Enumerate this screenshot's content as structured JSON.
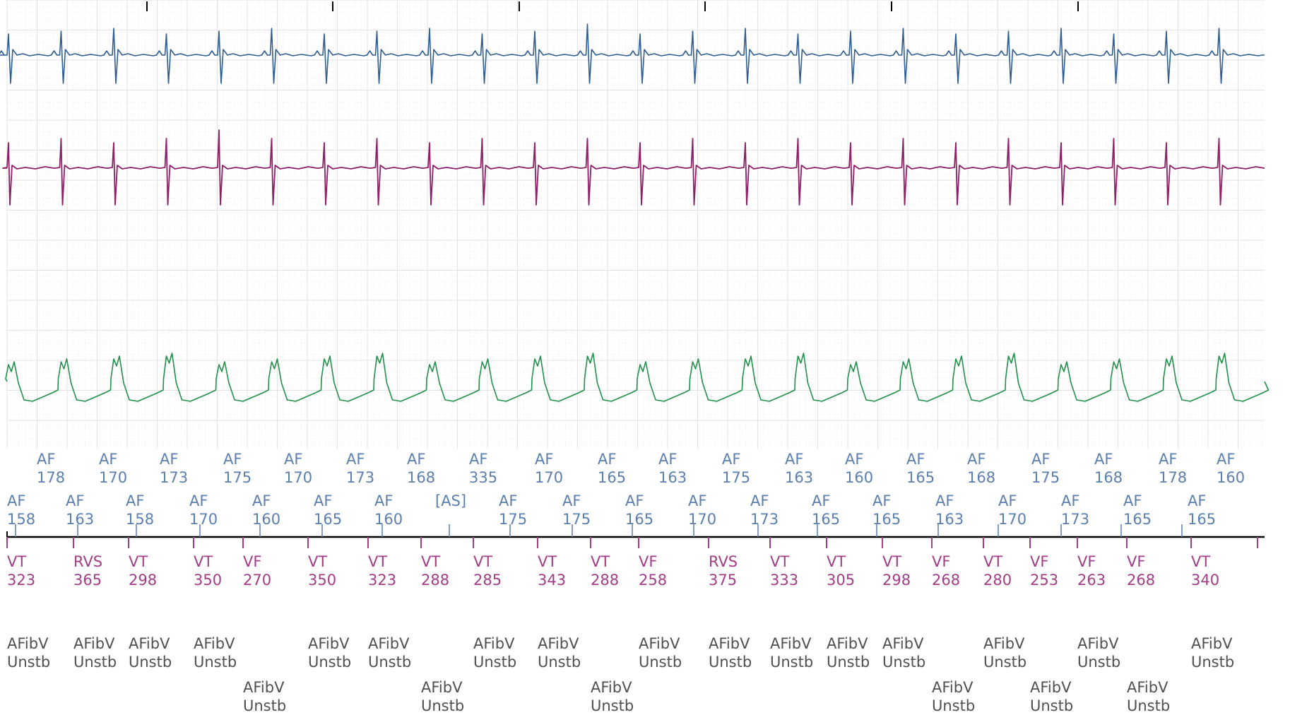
{
  "colors": {
    "grid_major": "#e3e3e3",
    "grid_minor": "#efefef",
    "ecg_blue": "#2f5e92",
    "ecg_purple": "#8e1f68",
    "ecg_green": "#20904a",
    "atrial_label": "#5b7fae",
    "ventricular_label": "#a23d86",
    "rhythm_label": "#505050",
    "baseline": "#000000"
  },
  "atrial_row1": [
    {
      "top": "AF",
      "bottom": "178"
    },
    {
      "top": "AF",
      "bottom": "170"
    },
    {
      "top": "AF",
      "bottom": "173"
    },
    {
      "top": "AF",
      "bottom": "175"
    },
    {
      "top": "AF",
      "bottom": "170"
    },
    {
      "top": "AF",
      "bottom": "173"
    },
    {
      "top": "AF",
      "bottom": "168"
    },
    {
      "top": "AF",
      "bottom": "335"
    },
    {
      "top": "AF",
      "bottom": "170"
    },
    {
      "top": "AF",
      "bottom": "165"
    },
    {
      "top": "AF",
      "bottom": "163"
    },
    {
      "top": "AF",
      "bottom": "175"
    },
    {
      "top": "AF",
      "bottom": "163"
    },
    {
      "top": "AF",
      "bottom": "160"
    },
    {
      "top": "AF",
      "bottom": "165"
    },
    {
      "top": "AF",
      "bottom": "168"
    },
    {
      "top": "AF",
      "bottom": "175"
    },
    {
      "top": "AF",
      "bottom": "168"
    },
    {
      "top": "AF",
      "bottom": "178"
    },
    {
      "top": "AF",
      "bottom": "160"
    }
  ],
  "atrial_row2": [
    {
      "top": "AF",
      "bottom": "158"
    },
    {
      "top": "AF",
      "bottom": "163"
    },
    {
      "top": "AF",
      "bottom": "158"
    },
    {
      "top": "AF",
      "bottom": "170"
    },
    {
      "top": "AF",
      "bottom": "160"
    },
    {
      "top": "AF",
      "bottom": "165"
    },
    {
      "top": "AF",
      "bottom": "160"
    },
    {
      "top": "[AS]",
      "bottom": ""
    },
    {
      "top": "AF",
      "bottom": "175"
    },
    {
      "top": "AF",
      "bottom": "175"
    },
    {
      "top": "AF",
      "bottom": "165"
    },
    {
      "top": "AF",
      "bottom": "170"
    },
    {
      "top": "AF",
      "bottom": "173"
    },
    {
      "top": "AF",
      "bottom": "165"
    },
    {
      "top": "AF",
      "bottom": "165"
    },
    {
      "top": "AF",
      "bottom": "163"
    },
    {
      "top": "AF",
      "bottom": "170"
    },
    {
      "top": "AF",
      "bottom": "173"
    },
    {
      "top": "AF",
      "bottom": "165"
    },
    {
      "top": "AF",
      "bottom": "165"
    }
  ],
  "ventricular": [
    {
      "top": "VT",
      "bottom": "323"
    },
    {
      "top": "RVS",
      "bottom": "365"
    },
    {
      "top": "VT",
      "bottom": "298"
    },
    {
      "top": "VT",
      "bottom": "350"
    },
    {
      "top": "VF",
      "bottom": "270"
    },
    {
      "top": "VT",
      "bottom": "350"
    },
    {
      "top": "VT",
      "bottom": "323"
    },
    {
      "top": "VT",
      "bottom": "288"
    },
    {
      "top": "VT",
      "bottom": "285"
    },
    {
      "top": "VT",
      "bottom": "343"
    },
    {
      "top": "VT",
      "bottom": "288"
    },
    {
      "top": "VF",
      "bottom": "258"
    },
    {
      "top": "RVS",
      "bottom": "375"
    },
    {
      "top": "VT",
      "bottom": "333"
    },
    {
      "top": "VT",
      "bottom": "305"
    },
    {
      "top": "VT",
      "bottom": "298"
    },
    {
      "top": "VF",
      "bottom": "268"
    },
    {
      "top": "VT",
      "bottom": "280"
    },
    {
      "top": "VF",
      "bottom": "253"
    },
    {
      "top": "VF",
      "bottom": "263"
    },
    {
      "top": "VF",
      "bottom": "268"
    },
    {
      "top": "VT",
      "bottom": "340"
    }
  ],
  "rhythm_row1": [
    {
      "top": "AFibV",
      "bottom": "Unstb"
    },
    {
      "top": "AFibV",
      "bottom": "Unstb"
    },
    {
      "top": "AFibV",
      "bottom": "Unstb"
    },
    {
      "top": "AFibV",
      "bottom": "Unstb"
    },
    {
      "top": "AFibV",
      "bottom": "Unstb"
    },
    {
      "top": "AFibV",
      "bottom": "Unstb"
    },
    {
      "top": "AFibV",
      "bottom": "Unstb"
    },
    {
      "top": "AFibV",
      "bottom": "Unstb"
    },
    {
      "top": "AFibV",
      "bottom": "Unstb"
    },
    {
      "top": "AFibV",
      "bottom": "Unstb"
    },
    {
      "top": "AFibV",
      "bottom": "Unstb"
    },
    {
      "top": "AFibV",
      "bottom": "Unstb"
    },
    {
      "top": "AFibV",
      "bottom": "Unstb"
    },
    {
      "top": "AFibV",
      "bottom": "Unstb"
    },
    {
      "top": "AFibV",
      "bottom": "Unstb"
    },
    {
      "top": "AFibV",
      "bottom": "Unstb"
    }
  ],
  "rhythm_row2": [
    {
      "top": "AFibV",
      "bottom": "Unstb"
    },
    {
      "top": "AFibV",
      "bottom": "Unstb"
    },
    {
      "top": "AFibV",
      "bottom": "Unstb"
    },
    {
      "top": "AFibV",
      "bottom": "Unstb"
    },
    {
      "top": "AFibV",
      "bottom": "Unstb"
    },
    {
      "top": "AFibV",
      "bottom": "Unstb"
    }
  ]
}
